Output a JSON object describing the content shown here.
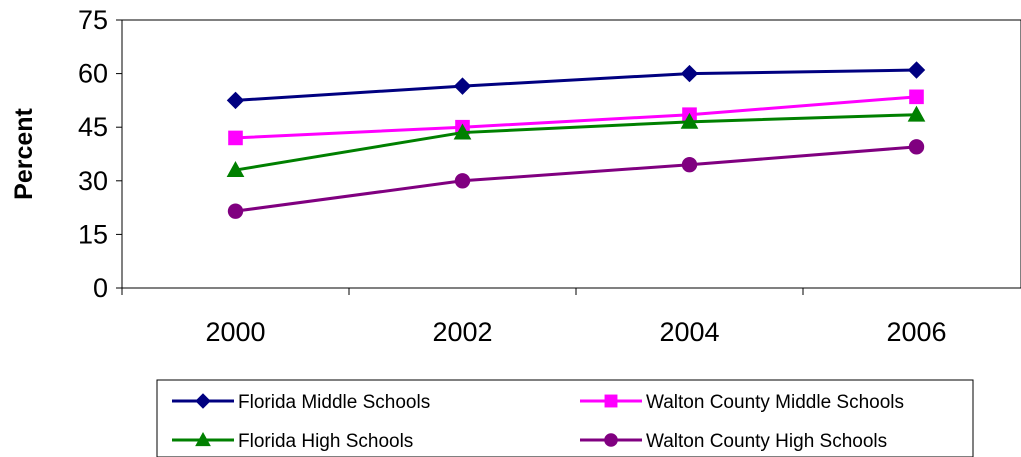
{
  "chart_data": {
    "type": "line",
    "categories": [
      "2000",
      "2002",
      "2004",
      "2006"
    ],
    "ylabel": "Percent",
    "xlabel": "",
    "title": "",
    "ylim": [
      0,
      75
    ],
    "yticks": [
      "0",
      "15",
      "30",
      "45",
      "60",
      "75"
    ],
    "legend_position": "bottom",
    "grid": false,
    "series": [
      {
        "name": "Florida Middle Schools",
        "values": [
          52.5,
          56.5,
          60,
          61
        ],
        "color": "#000080",
        "marker": "diamond"
      },
      {
        "name": "Walton County Middle Schools",
        "values": [
          42,
          45,
          48.5,
          53.5
        ],
        "color": "#ff00ff",
        "marker": "square"
      },
      {
        "name": "Florida High Schools",
        "values": [
          33,
          43.5,
          46.5,
          48.5
        ],
        "color": "#008000",
        "marker": "triangle"
      },
      {
        "name": "Walton County High Schools",
        "values": [
          21.5,
          30,
          34.5,
          39.5
        ],
        "color": "#800080",
        "marker": "circle"
      }
    ]
  }
}
